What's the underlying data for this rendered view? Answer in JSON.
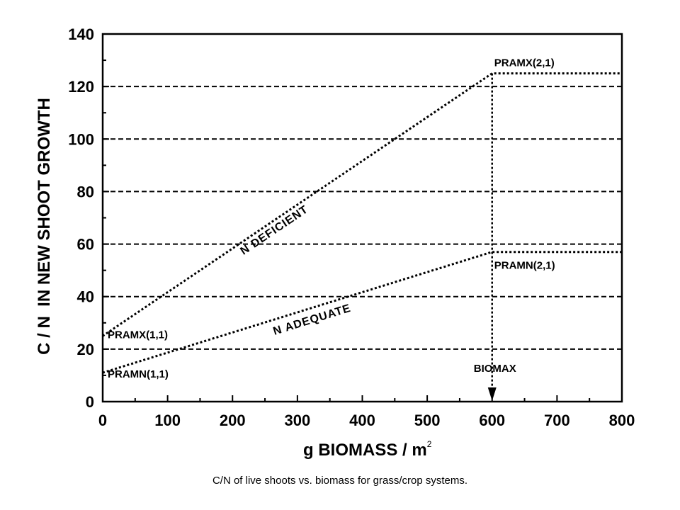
{
  "chart_data": {
    "type": "line",
    "xlabel": "g BIOMASS / m",
    "xlabel_superscript": "2",
    "ylabel": "C / N  IN NEW SHOOT GROWTH",
    "xlim": [
      0,
      800
    ],
    "ylim": [
      0,
      140
    ],
    "x_ticks": [
      0,
      100,
      200,
      300,
      400,
      500,
      600,
      700,
      800
    ],
    "y_ticks": [
      0,
      20,
      40,
      60,
      80,
      100,
      120,
      140
    ],
    "grid": "horizontal dashed",
    "series": [
      {
        "x": [
          0,
          600,
          800
        ],
        "y": [
          25,
          125,
          125
        ],
        "style": "dotted"
      },
      {
        "x": [
          0,
          600,
          800
        ],
        "y": [
          11,
          57,
          57
        ],
        "style": "dotted"
      }
    ],
    "vertical_marker": {
      "x": 600,
      "y_from": 125,
      "y_to": 0,
      "label": "BIOMAX"
    },
    "annotations": [
      {
        "text": "PRAMX(2,1)",
        "x": 600,
        "y": 125
      },
      {
        "text": "PRAMN(2,1)",
        "x": 600,
        "y": 57
      },
      {
        "text": "PRAMX(1,1)",
        "x": 0,
        "y": 25
      },
      {
        "text": "PRAMN(1,1)",
        "x": 0,
        "y": 11
      },
      {
        "text": "N DEFICIENT",
        "on_series": 0
      },
      {
        "text": "N ADEQUATE",
        "on_series": 1
      }
    ]
  },
  "caption": "C/N of live shoots vs. biomass for grass/crop systems."
}
